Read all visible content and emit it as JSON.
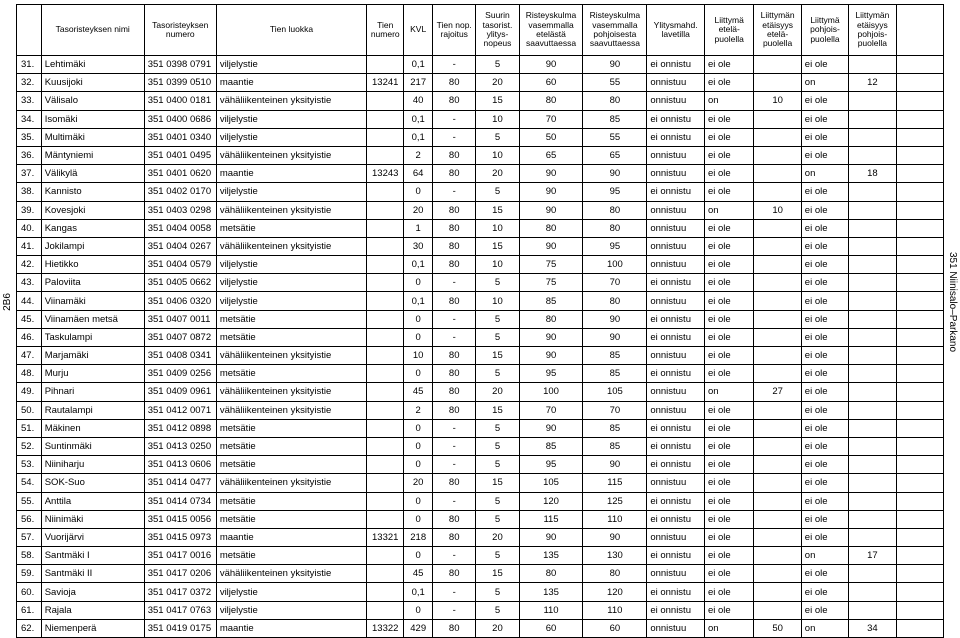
{
  "page": {
    "side_left": "2B6",
    "side_right": "351 Niinisalo–Parkano"
  },
  "columns": [
    "Tasoristeyksen nimi",
    "Tasoristeyksen numero",
    "Tien luokka",
    "Tien numero",
    "KVL",
    "Tien nop. rajoitus",
    "Suurin tasorist. ylitys-nopeus",
    "Risteyskulma vasemmalla etelästä saavuttaessa",
    "Risteyskulma vasemmalla pohjoisesta saavuttaessa",
    "Ylitysmahd. lavetilla",
    "Liittymä etelä-puolella",
    "Liittymän etäisyys etelä-puolella",
    "Liittymä pohjois-puolella",
    "Liittymän etäisyys pohjois-puolella",
    ""
  ],
  "col_align": [
    "num",
    "",
    "",
    "",
    "c",
    "c",
    "c",
    "c",
    "c",
    "c",
    "",
    "",
    "c",
    "",
    "c",
    "c"
  ],
  "rows": [
    [
      "31.",
      "Lehtimäki",
      "351 0398 0791",
      "viljelystie",
      "",
      "0,1",
      "-",
      "5",
      "90",
      "90",
      "ei onnistu",
      "ei ole",
      "",
      "ei ole",
      "",
      ""
    ],
    [
      "32.",
      "Kuusijoki",
      "351 0399 0510",
      "maantie",
      "13241",
      "217",
      "80",
      "20",
      "60",
      "55",
      "onnistuu",
      "ei ole",
      "",
      "on",
      "12",
      ""
    ],
    [
      "33.",
      "Välisalo",
      "351 0400 0181",
      "vähäliikenteinen yksityistie",
      "",
      "40",
      "80",
      "15",
      "80",
      "80",
      "onnistuu",
      "on",
      "10",
      "ei ole",
      "",
      ""
    ],
    [
      "34.",
      "Isomäki",
      "351 0400 0686",
      "viljelystie",
      "",
      "0,1",
      "-",
      "10",
      "70",
      "85",
      "ei onnistu",
      "ei ole",
      "",
      "ei ole",
      "",
      ""
    ],
    [
      "35.",
      "Multimäki",
      "351 0401 0340",
      "viljelystie",
      "",
      "0,1",
      "-",
      "5",
      "50",
      "55",
      "ei onnistu",
      "ei ole",
      "",
      "ei ole",
      "",
      ""
    ],
    [
      "36.",
      "Mäntyniemi",
      "351 0401 0495",
      "vähäliikenteinen yksityistie",
      "",
      "2",
      "80",
      "10",
      "65",
      "65",
      "onnistuu",
      "ei ole",
      "",
      "ei ole",
      "",
      ""
    ],
    [
      "37.",
      "Välikylä",
      "351 0401 0620",
      "maantie",
      "13243",
      "64",
      "80",
      "20",
      "90",
      "90",
      "onnistuu",
      "ei ole",
      "",
      "on",
      "18",
      ""
    ],
    [
      "38.",
      "Kannisto",
      "351 0402 0170",
      "viljelystie",
      "",
      "0",
      "-",
      "5",
      "90",
      "95",
      "ei onnistu",
      "ei ole",
      "",
      "ei ole",
      "",
      ""
    ],
    [
      "39.",
      "Kovesjoki",
      "351 0403 0298",
      "vähäliikenteinen yksityistie",
      "",
      "20",
      "80",
      "15",
      "90",
      "80",
      "onnistuu",
      "on",
      "10",
      "ei ole",
      "",
      ""
    ],
    [
      "40.",
      "Kangas",
      "351 0404 0058",
      "metsätie",
      "",
      "1",
      "80",
      "10",
      "80",
      "80",
      "onnistuu",
      "ei ole",
      "",
      "ei ole",
      "",
      ""
    ],
    [
      "41.",
      "Jokilampi",
      "351 0404 0267",
      "vähäliikenteinen yksityistie",
      "",
      "30",
      "80",
      "15",
      "90",
      "95",
      "onnistuu",
      "ei ole",
      "",
      "ei ole",
      "",
      ""
    ],
    [
      "42.",
      "Hietikko",
      "351 0404 0579",
      "viljelystie",
      "",
      "0,1",
      "80",
      "10",
      "75",
      "100",
      "onnistuu",
      "ei ole",
      "",
      "ei ole",
      "",
      ""
    ],
    [
      "43.",
      "Paloviita",
      "351 0405 0662",
      "viljelystie",
      "",
      "0",
      "-",
      "5",
      "75",
      "70",
      "ei onnistu",
      "ei ole",
      "",
      "ei ole",
      "",
      ""
    ],
    [
      "44.",
      "Viinamäki",
      "351 0406 0320",
      "viljelystie",
      "",
      "0,1",
      "80",
      "10",
      "85",
      "80",
      "onnistuu",
      "ei ole",
      "",
      "ei ole",
      "",
      ""
    ],
    [
      "45.",
      "Viinamäen metsä",
      "351 0407 0011",
      "metsätie",
      "",
      "0",
      "-",
      "5",
      "80",
      "90",
      "ei onnistu",
      "ei ole",
      "",
      "ei ole",
      "",
      ""
    ],
    [
      "46.",
      "Taskulampi",
      "351 0407 0872",
      "metsätie",
      "",
      "0",
      "-",
      "5",
      "90",
      "90",
      "ei onnistu",
      "ei ole",
      "",
      "ei ole",
      "",
      ""
    ],
    [
      "47.",
      "Marjamäki",
      "351 0408 0341",
      "vähäliikenteinen yksityistie",
      "",
      "10",
      "80",
      "15",
      "90",
      "85",
      "onnistuu",
      "ei ole",
      "",
      "ei ole",
      "",
      ""
    ],
    [
      "48.",
      "Murju",
      "351 0409 0256",
      "metsätie",
      "",
      "0",
      "80",
      "5",
      "95",
      "85",
      "ei onnistu",
      "ei ole",
      "",
      "ei ole",
      "",
      ""
    ],
    [
      "49.",
      "Pihnari",
      "351 0409 0961",
      "vähäliikenteinen yksityistie",
      "",
      "45",
      "80",
      "20",
      "100",
      "105",
      "onnistuu",
      "on",
      "27",
      "ei ole",
      "",
      ""
    ],
    [
      "50.",
      "Rautalampi",
      "351 0412 0071",
      "vähäliikenteinen yksityistie",
      "",
      "2",
      "80",
      "15",
      "70",
      "70",
      "onnistuu",
      "ei ole",
      "",
      "ei ole",
      "",
      ""
    ],
    [
      "51.",
      "Mäkinen",
      "351 0412 0898",
      "metsätie",
      "",
      "0",
      "-",
      "5",
      "90",
      "85",
      "ei onnistu",
      "ei ole",
      "",
      "ei ole",
      "",
      ""
    ],
    [
      "52.",
      "Suntinmäki",
      "351 0413 0250",
      "metsätie",
      "",
      "0",
      "-",
      "5",
      "85",
      "85",
      "ei onnistu",
      "ei ole",
      "",
      "ei ole",
      "",
      ""
    ],
    [
      "53.",
      "Niiniharju",
      "351 0413 0606",
      "metsätie",
      "",
      "0",
      "-",
      "5",
      "95",
      "90",
      "ei onnistu",
      "ei ole",
      "",
      "ei ole",
      "",
      ""
    ],
    [
      "54.",
      "SOK-Suo",
      "351 0414 0477",
      "vähäliikenteinen yksityistie",
      "",
      "20",
      "80",
      "15",
      "105",
      "115",
      "onnistuu",
      "ei ole",
      "",
      "ei ole",
      "",
      ""
    ],
    [
      "55.",
      "Anttila",
      "351 0414 0734",
      "metsätie",
      "",
      "0",
      "-",
      "5",
      "120",
      "125",
      "ei onnistu",
      "ei ole",
      "",
      "ei ole",
      "",
      ""
    ],
    [
      "56.",
      "Niinimäki",
      "351 0415 0056",
      "metsätie",
      "",
      "0",
      "80",
      "5",
      "115",
      "110",
      "ei onnistu",
      "ei ole",
      "",
      "ei ole",
      "",
      ""
    ],
    [
      "57.",
      "Vuorijärvi",
      "351 0415 0973",
      "maantie",
      "13321",
      "218",
      "80",
      "20",
      "90",
      "90",
      "onnistuu",
      "ei ole",
      "",
      "ei ole",
      "",
      ""
    ],
    [
      "58.",
      "Santmäki I",
      "351 0417 0016",
      "metsätie",
      "",
      "0",
      "-",
      "5",
      "135",
      "130",
      "ei onnistu",
      "ei ole",
      "",
      "on",
      "17",
      ""
    ],
    [
      "59.",
      "Santmäki II",
      "351 0417 0206",
      "vähäliikenteinen yksityistie",
      "",
      "45",
      "80",
      "15",
      "80",
      "80",
      "onnistuu",
      "ei ole",
      "",
      "ei ole",
      "",
      ""
    ],
    [
      "60.",
      "Savioja",
      "351 0417 0372",
      "viljelystie",
      "",
      "0,1",
      "-",
      "5",
      "135",
      "120",
      "ei onnistu",
      "ei ole",
      "",
      "ei ole",
      "",
      ""
    ],
    [
      "61.",
      "Rajala",
      "351 0417 0763",
      "viljelystie",
      "",
      "0",
      "-",
      "5",
      "110",
      "110",
      "ei onnistu",
      "ei ole",
      "",
      "ei ole",
      "",
      ""
    ],
    [
      "62.",
      "Niemenperä",
      "351 0419 0175",
      "maantie",
      "13322",
      "429",
      "80",
      "20",
      "60",
      "60",
      "onnistuu",
      "on",
      "50",
      "on",
      "34",
      ""
    ]
  ]
}
